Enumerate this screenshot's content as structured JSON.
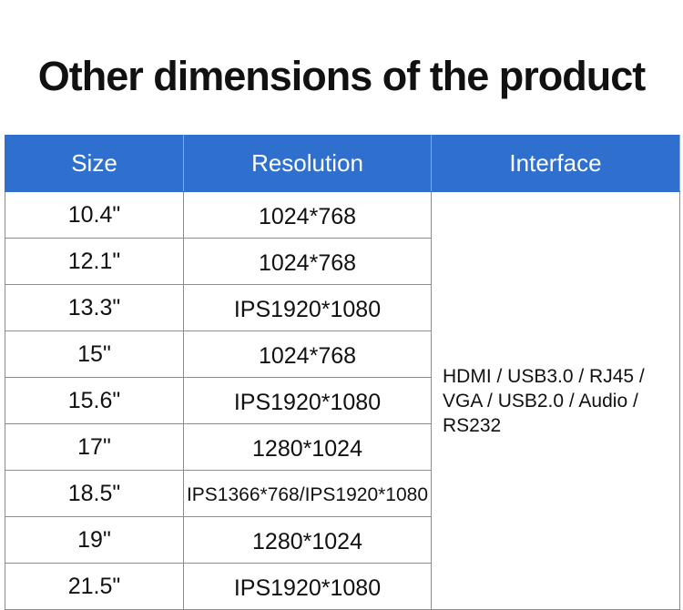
{
  "header": {
    "title": "Other dimensions of the product"
  },
  "table": {
    "columns": [
      "Size",
      "Resolution",
      "Interface"
    ],
    "rows": [
      [
        "10.4\"",
        "1024*768"
      ],
      [
        "12.1\"",
        "1024*768"
      ],
      [
        "13.3\"",
        "IPS1920*1080"
      ],
      [
        "15\"",
        "1024*768"
      ],
      [
        "15.6\"",
        "IPS1920*1080"
      ],
      [
        "17\"",
        "1280*1024"
      ],
      [
        "18.5\"",
        "IPS1366*768/IPS1920*1080"
      ],
      [
        "19\"",
        "1280*1024"
      ],
      [
        "21.5\"",
        "IPS1920*1080"
      ]
    ],
    "interface": "HDMI / USB3.0 / RJ45 / VGA / USB2.0 / Audio / RS232"
  }
}
